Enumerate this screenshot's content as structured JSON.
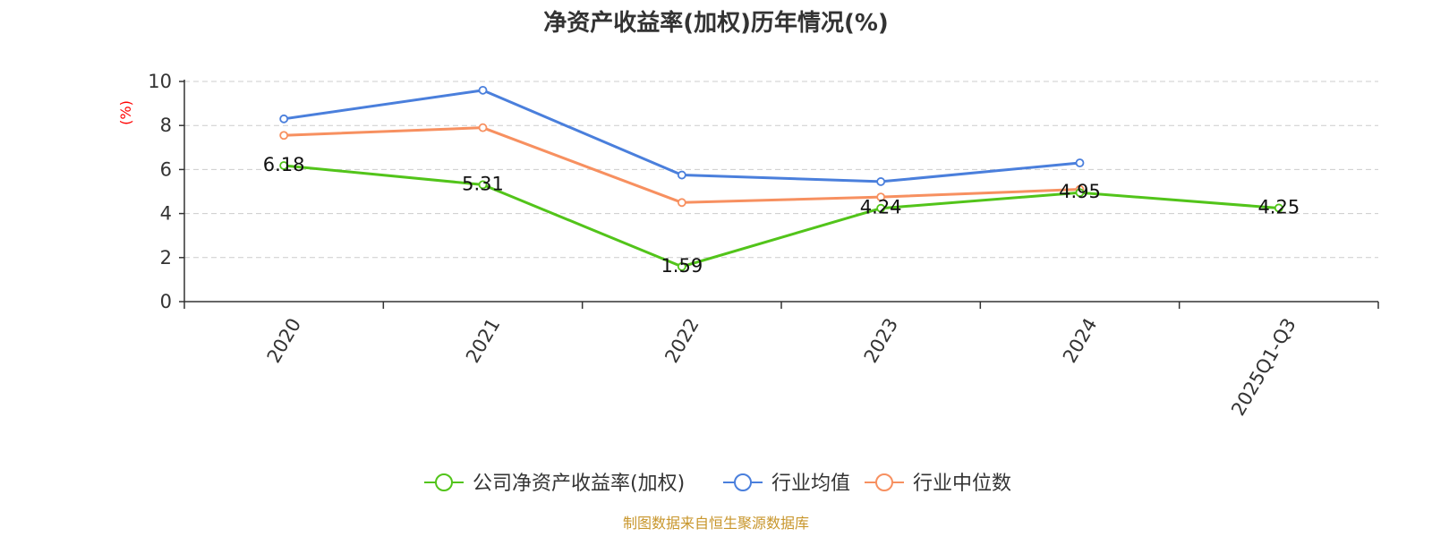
{
  "chart_data": {
    "type": "line",
    "title": "净资产收益率(加权)历年情况(%)",
    "ylabel": "(%)",
    "xlabel": "",
    "categories": [
      "2020",
      "2021",
      "2022",
      "2023",
      "2024",
      "2025Q1-Q3"
    ],
    "ylim": [
      0,
      10
    ],
    "yticks": [
      0,
      2,
      4,
      6,
      8,
      10
    ],
    "grid": true,
    "legend_position": "bottom",
    "series": [
      {
        "name": "公司净资产收益率(加权)",
        "color": "#52c41a",
        "values": [
          6.18,
          5.31,
          1.59,
          4.24,
          4.95,
          4.25
        ],
        "labels": [
          "6.18",
          "5.31",
          "1.59",
          "4.24",
          "4.95",
          "4.25"
        ]
      },
      {
        "name": "行业均值",
        "color": "#4a7fdc",
        "values": [
          8.3,
          9.6,
          5.75,
          5.45,
          6.3,
          null
        ]
      },
      {
        "name": "行业中位数",
        "color": "#f79060",
        "values": [
          7.55,
          7.9,
          4.5,
          4.75,
          5.1,
          null
        ]
      }
    ]
  },
  "source": "制图数据来自恒生聚源数据库"
}
